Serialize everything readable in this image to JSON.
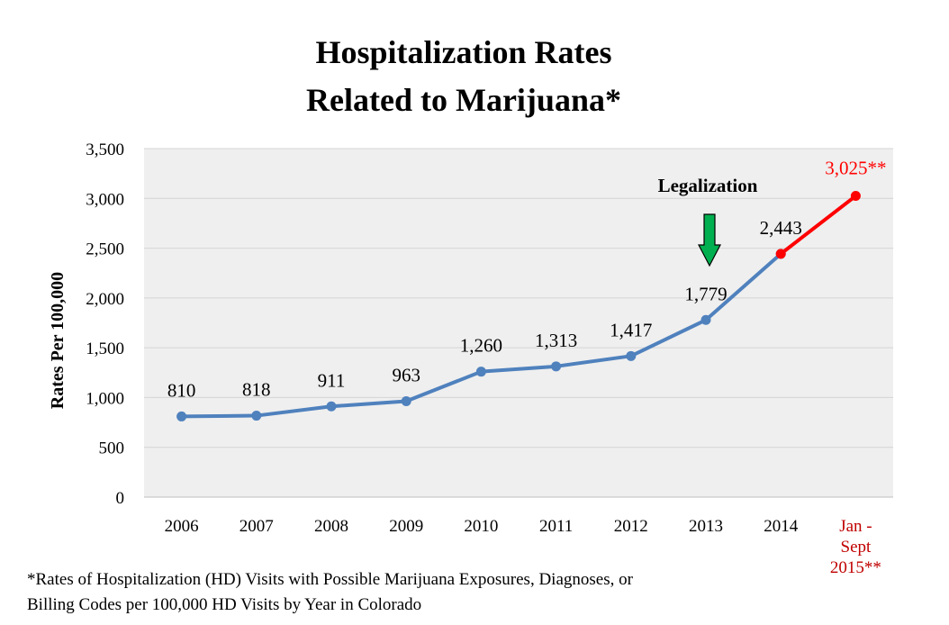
{
  "title_line1": "Hospitalization Rates",
  "title_line2": "Related to Marijuana*",
  "chart_data": {
    "type": "line",
    "title": "Hospitalization Rates Related to Marijuana*",
    "xlabel": "",
    "ylabel": "Rates Per 100,000",
    "ylim": [
      0,
      3500
    ],
    "yticks": [
      0,
      500,
      1000,
      1500,
      2000,
      2500,
      3000,
      3500
    ],
    "ytick_labels": [
      "0",
      "500",
      "1,000",
      "1,500",
      "2,000",
      "2,500",
      "3,000",
      "3,500"
    ],
    "categories": [
      "2006",
      "2007",
      "2008",
      "2009",
      "2010",
      "2011",
      "2012",
      "2013",
      "2014",
      "Jan - Sept 2015**"
    ],
    "category_label_lines": [
      [
        "2006"
      ],
      [
        "2007"
      ],
      [
        "2008"
      ],
      [
        "2009"
      ],
      [
        "2010"
      ],
      [
        "2011"
      ],
      [
        "2012"
      ],
      [
        "2013"
      ],
      [
        "2014"
      ],
      [
        "Jan -",
        "Sept",
        "2015**"
      ]
    ],
    "series": [
      {
        "name": "Hospitalization rate",
        "color": "#4F81BD",
        "values": [
          810,
          818,
          911,
          963,
          1260,
          1313,
          1417,
          1779,
          2443,
          null
        ],
        "labels": [
          "810",
          "818",
          "911",
          "963",
          "1,260",
          "1,313",
          "1,417",
          "1,779",
          "2,443",
          null
        ]
      },
      {
        "name": "Jan - Sept 2015 (partial year)",
        "color": "#FF0000",
        "values": [
          null,
          null,
          null,
          null,
          null,
          null,
          null,
          null,
          2443,
          3025
        ],
        "labels": [
          null,
          null,
          null,
          null,
          null,
          null,
          null,
          null,
          null,
          "3,025**"
        ]
      }
    ],
    "grid": true,
    "annotations": [
      {
        "text": "Legalization",
        "target_category": "2013",
        "arrow": "down",
        "arrow_color": "#00B050"
      }
    ]
  },
  "footnote_line1": "*Rates of Hospitalization (HD) Visits with Possible Marijuana Exposures, Diagnoses, or",
  "footnote_line2": "Billing Codes per 100,000 HD Visits by Year in Colorado"
}
